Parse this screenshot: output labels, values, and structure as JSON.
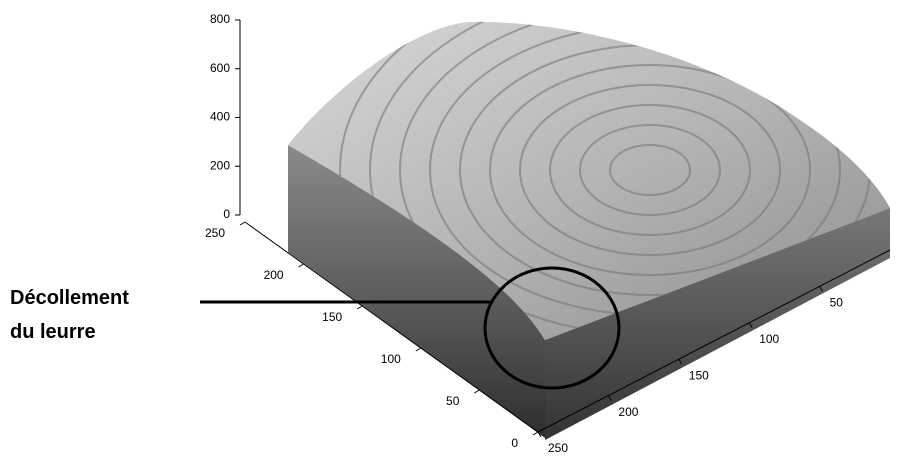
{
  "chart_data": {
    "type": "surface3d",
    "zlim": [
      0,
      800
    ],
    "zticks": [
      0,
      200,
      400,
      600,
      800
    ],
    "ylim": [
      0,
      250
    ],
    "yticks": [
      0,
      50,
      100,
      150,
      200,
      250
    ],
    "xlim": [
      0,
      250
    ],
    "xticks": [
      50,
      100,
      150,
      200,
      250
    ],
    "annotation": [
      "Décollement",
      "du leurre"
    ]
  }
}
